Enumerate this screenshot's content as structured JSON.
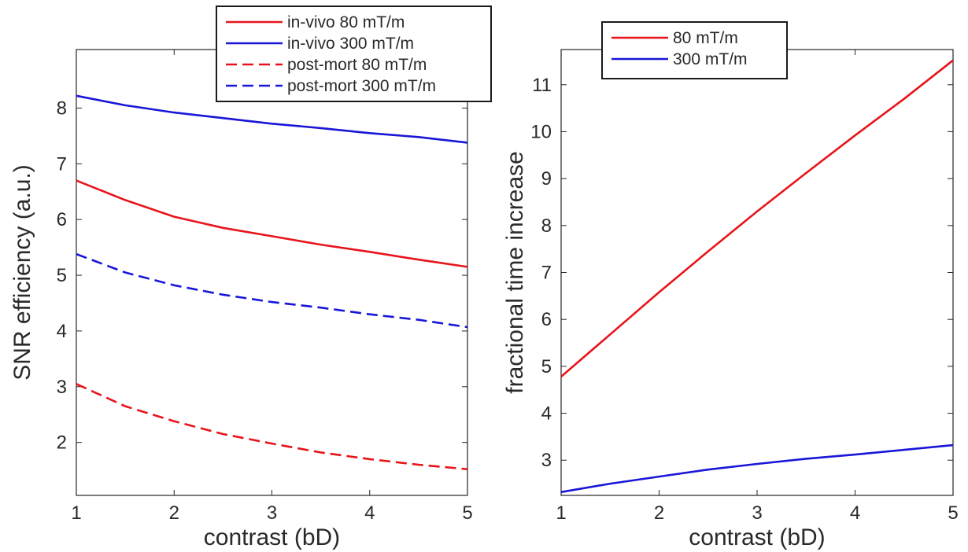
{
  "chart_data": [
    {
      "type": "line",
      "xlabel": "contrast (bD)",
      "ylabel": "SNR efficiency (a.u.)",
      "xlim": [
        1,
        5
      ],
      "ylim": [
        1.05,
        9.05
      ],
      "xticks": [
        "1",
        "2",
        "3",
        "4",
        "5"
      ],
      "yticks": [
        "2",
        "3",
        "4",
        "5",
        "6",
        "7",
        "8"
      ],
      "grid": false,
      "legend_position": "top-right",
      "x": [
        1,
        1.5,
        2,
        2.5,
        3,
        3.5,
        4,
        4.5,
        5
      ],
      "series": [
        {
          "name": "in-vivo 80 mT/m",
          "color": "#e8141b",
          "dash": "solid",
          "values": [
            6.7,
            6.35,
            6.05,
            5.85,
            5.7,
            5.55,
            5.42,
            5.28,
            5.15
          ]
        },
        {
          "name": "in-vivo 300 mT/m",
          "color": "#1a16d8",
          "dash": "solid",
          "values": [
            8.22,
            8.05,
            7.92,
            7.82,
            7.72,
            7.64,
            7.55,
            7.48,
            7.38
          ]
        },
        {
          "name": "post-mort 80 mT/m",
          "color": "#e8141b",
          "dash": "dashed",
          "values": [
            3.05,
            2.65,
            2.38,
            2.15,
            1.98,
            1.82,
            1.7,
            1.6,
            1.52
          ]
        },
        {
          "name": "post-mort 300 mT/m",
          "color": "#1a16d8",
          "dash": "dashed",
          "values": [
            5.38,
            5.05,
            4.82,
            4.65,
            4.52,
            4.42,
            4.3,
            4.2,
            4.07
          ]
        }
      ]
    },
    {
      "type": "line",
      "xlabel": "contrast (bD)",
      "ylabel": "fractional time increase",
      "xlim": [
        1,
        5
      ],
      "ylim": [
        2.25,
        11.75
      ],
      "xticks": [
        "1",
        "2",
        "3",
        "4",
        "5"
      ],
      "yticks": [
        "3",
        "4",
        "5",
        "6",
        "7",
        "8",
        "9",
        "10",
        "11"
      ],
      "grid": false,
      "legend_position": "top-left",
      "x": [
        1,
        1.5,
        2,
        2.5,
        3,
        3.5,
        4,
        4.5,
        5
      ],
      "series": [
        {
          "name": "80 mT/m",
          "color": "#e8141b",
          "dash": "solid",
          "values": [
            4.78,
            5.68,
            6.58,
            7.45,
            8.3,
            9.12,
            9.92,
            10.7,
            11.52
          ]
        },
        {
          "name": "300 mT/m",
          "color": "#1a16d8",
          "dash": "solid",
          "values": [
            2.32,
            2.5,
            2.65,
            2.8,
            2.92,
            3.03,
            3.12,
            3.22,
            3.32
          ]
        }
      ]
    }
  ]
}
